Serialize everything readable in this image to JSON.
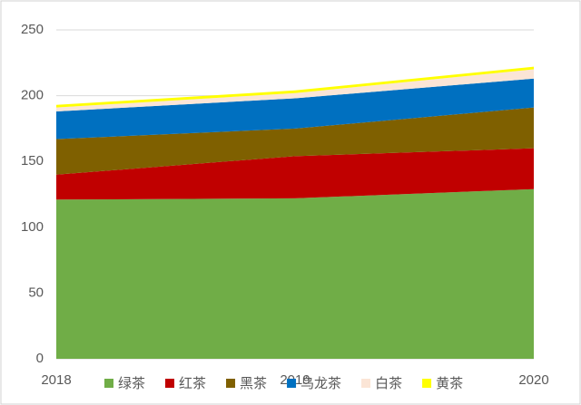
{
  "chart_data": {
    "type": "stacked-area",
    "x": [
      "2018",
      "2019",
      "2020"
    ],
    "series": [
      {
        "name": "绿茶",
        "color": "#70ad47",
        "values": [
          121,
          122,
          129
        ]
      },
      {
        "name": "红茶",
        "color": "#c00000",
        "values": [
          19,
          32,
          31
        ]
      },
      {
        "name": "黑茶",
        "color": "#7f6000",
        "values": [
          27,
          21,
          31
        ]
      },
      {
        "name": "乌龙茶",
        "color": "#0070c0",
        "values": [
          21,
          23,
          22
        ]
      },
      {
        "name": "白茶",
        "color": "#fbe5d6",
        "values": [
          3,
          4,
          7
        ]
      },
      {
        "name": "黄茶",
        "color": "#ffff00",
        "values": [
          2,
          2,
          2
        ]
      }
    ],
    "ylim": [
      0,
      250
    ],
    "yticks": [
      0,
      50,
      100,
      150,
      200,
      250
    ],
    "grid": true,
    "legend": "bottom"
  }
}
